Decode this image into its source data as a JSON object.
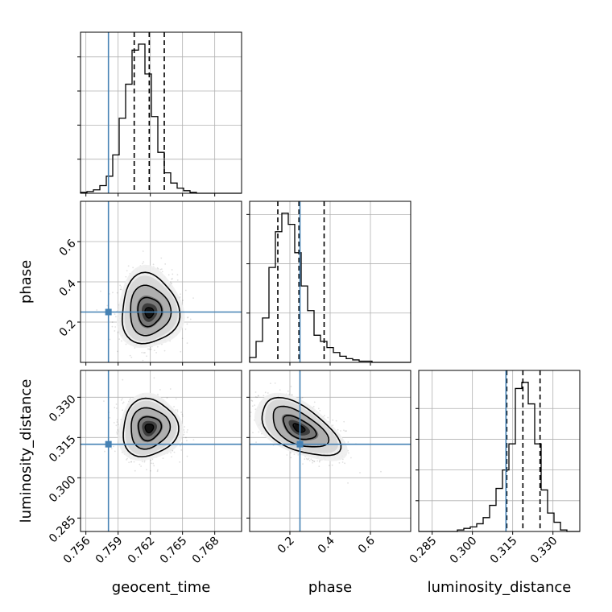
{
  "chart_data": {
    "type": "corner",
    "parameters": [
      {
        "name": "geocent_time",
        "range": [
          0.7555,
          0.7705
        ],
        "ticks": [
          0.756,
          0.759,
          0.762,
          0.765,
          0.768
        ],
        "tick_labels": [
          "0.756",
          "0.759",
          "0.762",
          "0.765",
          "0.768"
        ],
        "truth": 0.7581,
        "quantiles": [
          0.7605,
          0.7619,
          0.7633
        ],
        "hist_bin_start": 0.7555,
        "hist_bin_width": 0.0006,
        "hist_counts": [
          1,
          2,
          4,
          9,
          20,
          45,
          88,
          128,
          168,
          175,
          140,
          90,
          48,
          24,
          12,
          6,
          3,
          1,
          0,
          0,
          0,
          0,
          0,
          0,
          0
        ],
        "hist_ticks": [
          40,
          80,
          120,
          160
        ]
      },
      {
        "name": "phase",
        "range": [
          0.0,
          0.8
        ],
        "ticks": [
          0.2,
          0.4,
          0.6
        ],
        "tick_labels": [
          "0.2",
          "0.4",
          "0.6"
        ],
        "truth": 0.25,
        "quantiles": [
          0.14,
          0.245,
          0.37
        ],
        "hist_bin_start": 0.0,
        "hist_bin_width": 0.032,
        "hist_counts": [
          4,
          17,
          36,
          77,
          106,
          121,
          112,
          89,
          62,
          42,
          22,
          17,
          12,
          8,
          5,
          3,
          2,
          1,
          1,
          0,
          0,
          0,
          0,
          0,
          0
        ],
        "hist_ticks": [
          40,
          80,
          120
        ]
      },
      {
        "name": "luminosity_distance",
        "range": [
          0.28,
          0.34
        ],
        "ticks": [
          0.285,
          0.3,
          0.315,
          0.33
        ],
        "tick_labels": [
          "0.285",
          "0.300",
          "0.315",
          "0.330"
        ],
        "truth": 0.3125,
        "quantiles": [
          0.3128,
          0.3188,
          0.3252
        ],
        "hist_bin_start": 0.28,
        "hist_bin_width": 0.0024,
        "hist_counts": [
          0,
          0,
          0,
          0,
          0,
          0,
          1,
          2,
          3,
          5,
          9,
          17,
          28,
          40,
          57,
          93,
          97,
          83,
          57,
          27,
          12,
          6,
          1,
          0,
          0
        ],
        "hist_ticks": [
          20,
          40,
          60,
          80
        ]
      }
    ],
    "pairs": [
      {
        "x": 0,
        "y": 1,
        "center": [
          0.7619,
          0.245
        ],
        "spread": [
          0.0013,
          0.075
        ],
        "correlation": 0.0,
        "skew_y": 1.25
      },
      {
        "x": 0,
        "y": 2,
        "center": [
          0.7619,
          0.3185
        ],
        "spread": [
          0.00125,
          0.0052
        ],
        "correlation": 0.05,
        "skew_y": 1.0
      },
      {
        "x": 1,
        "y": 2,
        "center": [
          0.245,
          0.3185
        ],
        "spread": [
          0.095,
          0.0052
        ],
        "correlation": -0.55,
        "skew_y": 1.0
      }
    ],
    "grid": true,
    "truth_color": "#4682b4"
  }
}
